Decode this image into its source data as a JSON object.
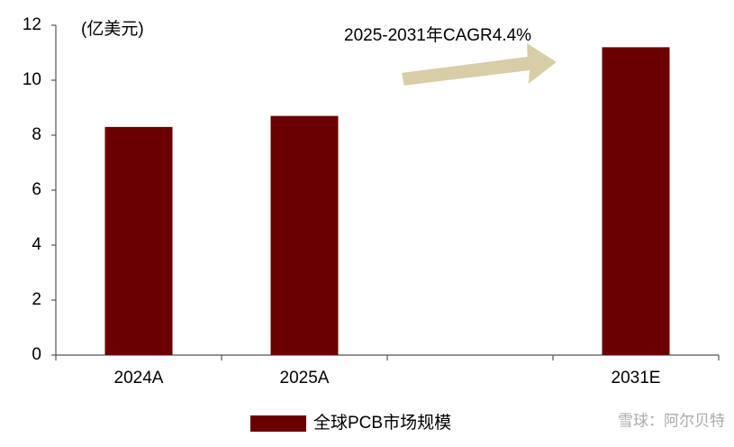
{
  "chart_data": {
    "type": "bar",
    "unit_label": "(亿美元)",
    "annotation": "2025-2031年CAGR4.4%",
    "categories": [
      "2024A",
      "2025A",
      null,
      "2031E"
    ],
    "series": [
      {
        "name": "全球PCB市场规模",
        "color": "#6b0000",
        "values": [
          8.3,
          8.7,
          null,
          11.2
        ]
      }
    ],
    "ylim": [
      0,
      12
    ],
    "yticks": [
      0,
      2,
      4,
      6,
      8,
      10,
      12
    ],
    "grid": false,
    "legend": "bottom",
    "watermark": "雪球：阿尔贝特"
  }
}
